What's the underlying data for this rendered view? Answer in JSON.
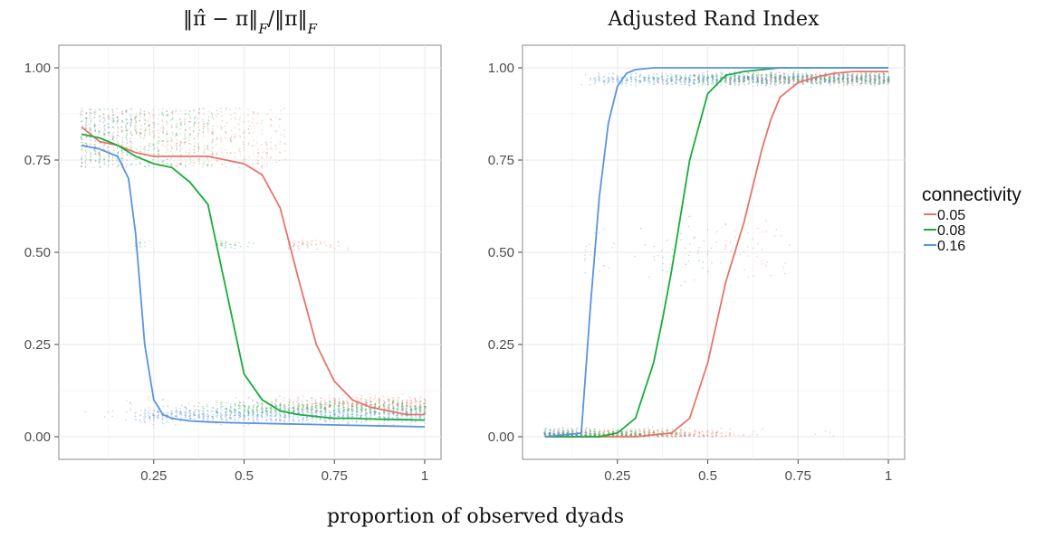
{
  "colors": {
    "0.05": "#E8736B",
    "0.08": "#1AAB3C",
    "0.16": "#5B93E0"
  },
  "xlabel": "proportion of observed dyads",
  "legend": {
    "title": "connectivity",
    "entries": [
      "0.05",
      "0.08",
      "0.16"
    ],
    "placement": "right"
  },
  "chart_data": [
    {
      "type": "line",
      "title": "‖π̂ − π‖F/‖π‖F",
      "xlim": [
        0.05,
        1
      ],
      "ylim": [
        0,
        1
      ],
      "x_ticks": [
        "0.25",
        "0.5",
        "0.75",
        "1"
      ],
      "y_ticks": [
        "0.00",
        "0.25",
        "0.50",
        "0.75",
        "1.00"
      ],
      "grid": true,
      "series": [
        {
          "name": "0.05",
          "x": [
            0.05,
            0.1,
            0.15,
            0.2,
            0.25,
            0.3,
            0.35,
            0.4,
            0.45,
            0.5,
            0.55,
            0.6,
            0.65,
            0.7,
            0.75,
            0.8,
            0.85,
            0.9,
            0.95,
            1.0
          ],
          "y": [
            0.84,
            0.8,
            0.79,
            0.77,
            0.76,
            0.76,
            0.76,
            0.76,
            0.75,
            0.74,
            0.71,
            0.62,
            0.43,
            0.25,
            0.15,
            0.1,
            0.08,
            0.07,
            0.06,
            0.06
          ]
        },
        {
          "name": "0.08",
          "x": [
            0.05,
            0.1,
            0.15,
            0.2,
            0.25,
            0.3,
            0.35,
            0.4,
            0.45,
            0.5,
            0.55,
            0.6,
            0.65,
            0.7,
            0.75,
            0.8,
            0.85,
            0.9,
            0.95,
            1.0
          ],
          "y": [
            0.82,
            0.81,
            0.79,
            0.76,
            0.74,
            0.73,
            0.69,
            0.63,
            0.4,
            0.17,
            0.1,
            0.07,
            0.06,
            0.055,
            0.05,
            0.05,
            0.048,
            0.047,
            0.046,
            0.045
          ]
        },
        {
          "name": "0.16",
          "x": [
            0.05,
            0.1,
            0.15,
            0.18,
            0.2,
            0.225,
            0.25,
            0.275,
            0.3,
            0.35,
            0.4,
            0.5,
            0.6,
            0.7,
            0.8,
            0.9,
            1.0
          ],
          "y": [
            0.79,
            0.78,
            0.76,
            0.7,
            0.55,
            0.25,
            0.1,
            0.06,
            0.05,
            0.043,
            0.04,
            0.037,
            0.035,
            0.033,
            0.031,
            0.029,
            0.027
          ]
        }
      ]
    },
    {
      "type": "line",
      "title": "Adjusted Rand Index",
      "xlim": [
        0.05,
        1
      ],
      "ylim": [
        0,
        1
      ],
      "x_ticks": [
        "0.25",
        "0.5",
        "0.75",
        "1"
      ],
      "y_ticks": [
        "0.00",
        "0.25",
        "0.50",
        "0.75",
        "1.00"
      ],
      "grid": true,
      "series": [
        {
          "name": "0.05",
          "x": [
            0.05,
            0.3,
            0.4,
            0.45,
            0.5,
            0.55,
            0.6,
            0.625,
            0.65,
            0.675,
            0.7,
            0.75,
            0.8,
            0.85,
            0.9,
            1.0
          ],
          "y": [
            0.0,
            0.0,
            0.01,
            0.05,
            0.2,
            0.42,
            0.58,
            0.68,
            0.78,
            0.86,
            0.92,
            0.96,
            0.975,
            0.985,
            0.99,
            0.99
          ]
        },
        {
          "name": "0.08",
          "x": [
            0.05,
            0.2,
            0.25,
            0.3,
            0.35,
            0.375,
            0.4,
            0.45,
            0.5,
            0.55,
            0.6,
            0.65,
            0.7,
            1.0
          ],
          "y": [
            0.0,
            0.0,
            0.01,
            0.05,
            0.2,
            0.32,
            0.45,
            0.75,
            0.93,
            0.98,
            0.99,
            0.995,
            1.0,
            1.0
          ]
        },
        {
          "name": "0.16",
          "x": [
            0.05,
            0.15,
            0.175,
            0.2,
            0.225,
            0.25,
            0.275,
            0.3,
            0.35,
            0.4,
            1.0
          ],
          "y": [
            0.0,
            0.01,
            0.35,
            0.65,
            0.85,
            0.95,
            0.985,
            0.995,
            1.0,
            1.0,
            1.0
          ]
        }
      ]
    }
  ]
}
